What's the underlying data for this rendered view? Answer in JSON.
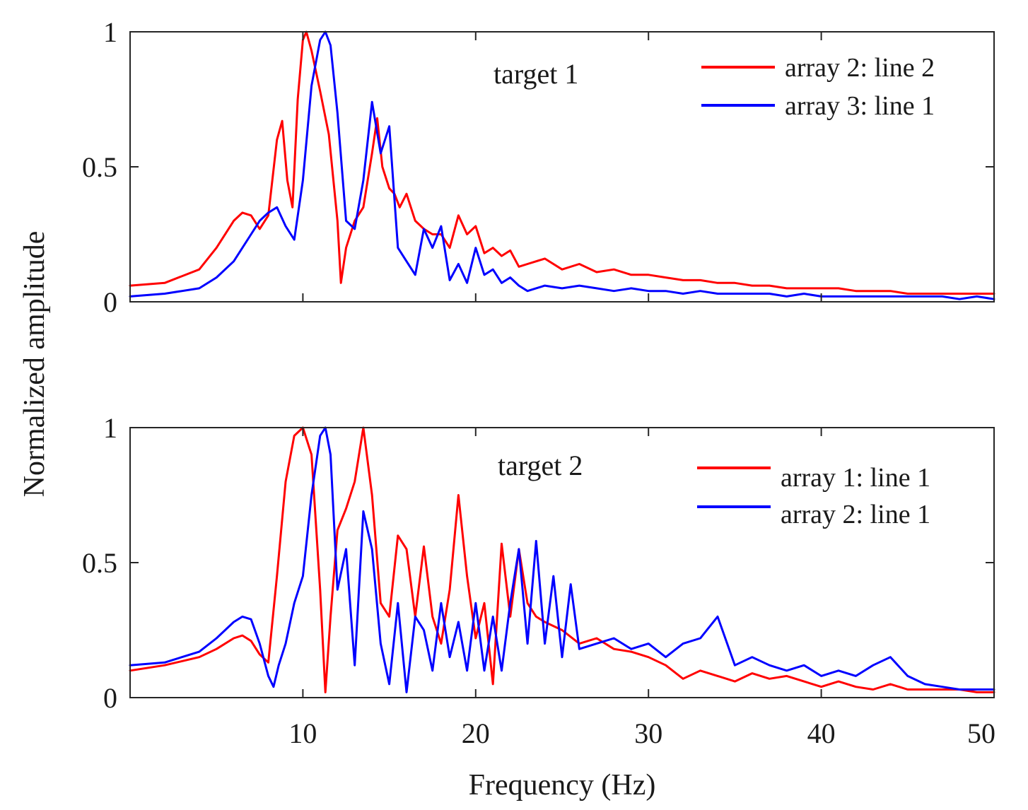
{
  "figure": {
    "ylabel": "Normalized amplitude",
    "xlabel": "Frequency (Hz)",
    "xlim": [
      0,
      50
    ],
    "x_ticks": [
      10,
      20,
      30,
      40,
      50
    ],
    "ylim": [
      0,
      1
    ],
    "y_ticks": [
      0,
      0.5,
      1
    ],
    "y_tick_labels": [
      "0",
      "0.5",
      "1"
    ]
  },
  "chart_data": [
    {
      "type": "line",
      "title": "",
      "annotation": "target 1",
      "xlabel": "",
      "ylabel": "Normalized amplitude",
      "xlim": [
        0,
        50
      ],
      "ylim": [
        0,
        1
      ],
      "legend_position": "top-right",
      "grid": false,
      "series": [
        {
          "name": "array 2: line 2",
          "color": "#ff0000",
          "x": [
            0,
            2,
            4,
            5,
            6,
            6.5,
            7,
            7.5,
            8,
            8.5,
            8.8,
            9.1,
            9.4,
            9.7,
            10,
            10.2,
            10.5,
            11,
            11.5,
            12,
            12.2,
            12.5,
            13,
            13.5,
            14,
            14.3,
            14.6,
            15,
            15.3,
            15.6,
            16,
            16.5,
            17,
            17.5,
            18,
            18.5,
            19,
            19.5,
            20,
            20.5,
            21,
            21.5,
            22,
            22.5,
            23,
            24,
            25,
            26,
            27,
            28,
            29,
            30,
            31,
            32,
            33,
            34,
            35,
            36,
            37,
            38,
            39,
            40,
            41,
            42,
            43,
            44,
            45,
            46,
            47,
            48,
            49,
            50
          ],
          "y": [
            0.06,
            0.07,
            0.12,
            0.2,
            0.3,
            0.33,
            0.32,
            0.27,
            0.32,
            0.6,
            0.67,
            0.45,
            0.35,
            0.75,
            0.97,
            1.0,
            0.93,
            0.78,
            0.62,
            0.3,
            0.07,
            0.2,
            0.3,
            0.35,
            0.55,
            0.68,
            0.5,
            0.42,
            0.4,
            0.35,
            0.4,
            0.3,
            0.27,
            0.25,
            0.25,
            0.2,
            0.32,
            0.25,
            0.28,
            0.18,
            0.2,
            0.17,
            0.19,
            0.13,
            0.14,
            0.16,
            0.12,
            0.14,
            0.11,
            0.12,
            0.1,
            0.1,
            0.09,
            0.08,
            0.08,
            0.07,
            0.07,
            0.06,
            0.06,
            0.05,
            0.05,
            0.05,
            0.05,
            0.04,
            0.04,
            0.04,
            0.03,
            0.03,
            0.03,
            0.03,
            0.03,
            0.03
          ]
        },
        {
          "name": "array 3: line 1",
          "color": "#0000ff",
          "x": [
            0,
            2,
            4,
            5,
            6,
            7,
            7.5,
            8,
            8.5,
            9,
            9.5,
            10,
            10.5,
            11,
            11.3,
            11.6,
            12,
            12.5,
            13,
            13.5,
            14,
            14.5,
            15,
            15.5,
            16,
            16.5,
            17,
            17.5,
            18,
            18.5,
            19,
            19.5,
            20,
            20.5,
            21,
            21.5,
            22,
            22.5,
            23,
            24,
            25,
            26,
            27,
            28,
            29,
            30,
            31,
            32,
            33,
            34,
            35,
            36,
            37,
            38,
            39,
            40,
            41,
            42,
            43,
            44,
            45,
            46,
            47,
            48,
            49,
            50
          ],
          "y": [
            0.02,
            0.03,
            0.05,
            0.09,
            0.15,
            0.25,
            0.3,
            0.33,
            0.35,
            0.28,
            0.23,
            0.45,
            0.8,
            0.97,
            1.0,
            0.95,
            0.7,
            0.3,
            0.27,
            0.45,
            0.74,
            0.55,
            0.65,
            0.2,
            0.15,
            0.1,
            0.27,
            0.2,
            0.28,
            0.08,
            0.14,
            0.07,
            0.2,
            0.1,
            0.12,
            0.07,
            0.09,
            0.06,
            0.04,
            0.06,
            0.05,
            0.06,
            0.05,
            0.04,
            0.05,
            0.04,
            0.04,
            0.03,
            0.04,
            0.03,
            0.03,
            0.03,
            0.03,
            0.02,
            0.03,
            0.02,
            0.02,
            0.02,
            0.02,
            0.02,
            0.02,
            0.02,
            0.02,
            0.01,
            0.02,
            0.01
          ]
        }
      ]
    },
    {
      "type": "line",
      "title": "",
      "annotation": "target 2",
      "xlabel": "Frequency (Hz)",
      "ylabel": "Normalized amplitude",
      "xlim": [
        0,
        50
      ],
      "ylim": [
        0,
        1
      ],
      "legend_position": "top-right",
      "grid": false,
      "series": [
        {
          "name": "array 1: line 1",
          "color": "#ff0000",
          "x": [
            0,
            2,
            4,
            5,
            6,
            6.5,
            7,
            7.5,
            8,
            8.5,
            9,
            9.5,
            10,
            10.5,
            11,
            11.3,
            11.6,
            12,
            12.5,
            13,
            13.5,
            14,
            14.5,
            15,
            15.5,
            16,
            16.5,
            17,
            17.5,
            18,
            18.5,
            19,
            19.5,
            20,
            20.5,
            21,
            21.5,
            22,
            22.5,
            23,
            23.5,
            24,
            25,
            26,
            27,
            28,
            29,
            30,
            31,
            32,
            33,
            34,
            35,
            36,
            37,
            38,
            39,
            40,
            41,
            42,
            43,
            44,
            45,
            46,
            47,
            48,
            49,
            50
          ],
          "y": [
            0.1,
            0.12,
            0.15,
            0.18,
            0.22,
            0.23,
            0.21,
            0.16,
            0.13,
            0.45,
            0.8,
            0.97,
            1.0,
            0.9,
            0.4,
            0.02,
            0.3,
            0.62,
            0.7,
            0.8,
            1.0,
            0.75,
            0.35,
            0.3,
            0.6,
            0.55,
            0.3,
            0.56,
            0.3,
            0.2,
            0.4,
            0.75,
            0.45,
            0.22,
            0.35,
            0.05,
            0.57,
            0.3,
            0.55,
            0.35,
            0.3,
            0.28,
            0.25,
            0.2,
            0.22,
            0.18,
            0.17,
            0.15,
            0.12,
            0.07,
            0.1,
            0.08,
            0.06,
            0.09,
            0.07,
            0.08,
            0.06,
            0.04,
            0.06,
            0.04,
            0.03,
            0.05,
            0.03,
            0.03,
            0.03,
            0.03,
            0.02,
            0.02
          ]
        },
        {
          "name": "array 2: line 1",
          "color": "#0000ff",
          "x": [
            0,
            2,
            4,
            5,
            6,
            6.5,
            7,
            7.5,
            8,
            8.3,
            8.6,
            9,
            9.5,
            10,
            10.5,
            11,
            11.3,
            11.6,
            12,
            12.5,
            13,
            13.5,
            14,
            14.5,
            15,
            15.5,
            16,
            16.5,
            17,
            17.5,
            18,
            18.5,
            19,
            19.5,
            20,
            20.5,
            21,
            21.5,
            22,
            22.5,
            23,
            23.5,
            24,
            24.5,
            25,
            25.5,
            26,
            27,
            28,
            29,
            30,
            31,
            32,
            33,
            34,
            35,
            36,
            37,
            38,
            39,
            40,
            41,
            42,
            43,
            44,
            45,
            46,
            47,
            48,
            49,
            50
          ],
          "y": [
            0.12,
            0.13,
            0.17,
            0.22,
            0.28,
            0.3,
            0.29,
            0.2,
            0.08,
            0.04,
            0.12,
            0.2,
            0.35,
            0.45,
            0.75,
            0.97,
            1.0,
            0.9,
            0.4,
            0.55,
            0.12,
            0.69,
            0.55,
            0.2,
            0.05,
            0.35,
            0.02,
            0.3,
            0.25,
            0.1,
            0.35,
            0.15,
            0.28,
            0.1,
            0.35,
            0.1,
            0.3,
            0.1,
            0.35,
            0.55,
            0.2,
            0.58,
            0.2,
            0.45,
            0.15,
            0.42,
            0.18,
            0.2,
            0.22,
            0.18,
            0.2,
            0.15,
            0.2,
            0.22,
            0.3,
            0.12,
            0.15,
            0.12,
            0.1,
            0.12,
            0.08,
            0.1,
            0.08,
            0.12,
            0.15,
            0.08,
            0.05,
            0.04,
            0.03,
            0.03,
            0.03
          ]
        }
      ]
    }
  ]
}
